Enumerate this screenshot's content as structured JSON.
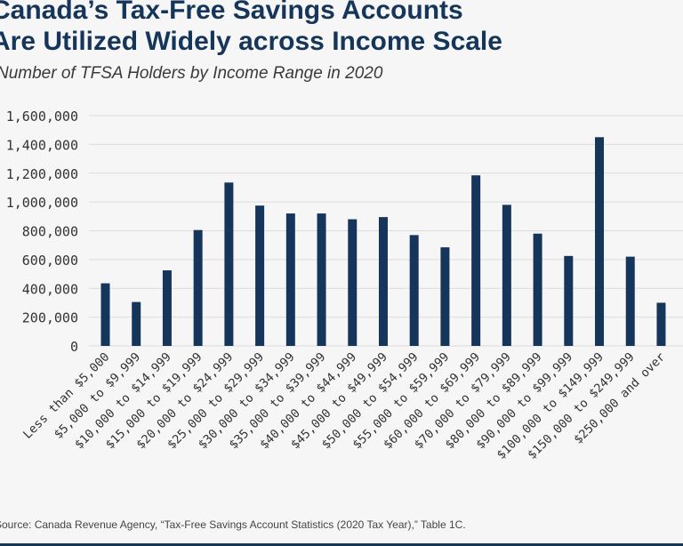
{
  "header": {
    "title_line1": "Canada’s Tax-Free Savings Accounts",
    "title_line2": "Are Utilized Widely across Income Scale",
    "subtitle": "Number of TFSA Holders by Income Range in 2020"
  },
  "footer": {
    "source": "Source: Canada Revenue Agency, “Tax-Free Savings Account Statistics (2020 Tax Year),” Table 1C."
  },
  "colors": {
    "bar": "#16355a",
    "title": "#16355a",
    "grid": "#dcdcdc",
    "background": "#f6f6f6"
  },
  "chart_data": {
    "type": "bar",
    "title": "Number of TFSA Holders by Income Range in 2020",
    "xlabel": "",
    "ylabel": "",
    "ylim": [
      0,
      1600000
    ],
    "yticks": [
      0,
      200000,
      400000,
      600000,
      800000,
      1000000,
      1200000,
      1400000,
      1600000
    ],
    "ytick_labels": [
      "0",
      "200,000",
      "400,000",
      "600,000",
      "800,000",
      "1,000,000",
      "1,200,000",
      "1,400,000",
      "1,600,000"
    ],
    "grid": true,
    "categories": [
      "Less than $5,000",
      "$5,000 to $9,999",
      "$10,000 to $14,999",
      "$15,000 to $19,999",
      "$20,000 to $24,999",
      "$25,000 to $29,999",
      "$30,000 to $34,999",
      "$35,000 to $39,999",
      "$40,000 to $44,999",
      "$45,000 to $49,999",
      "$50,000 to $54,999",
      "$55,000 to $59,999",
      "$60,000 to $69,999",
      "$70,000 to $79,999",
      "$80,000 to $89,999",
      "$90,000 to $99,999",
      "$100,000 to $149,999",
      "$150,000 to $249,999",
      "$250,000 and over"
    ],
    "values": [
      435000,
      305000,
      525000,
      805000,
      1135000,
      975000,
      920000,
      920000,
      880000,
      895000,
      770000,
      685000,
      1185000,
      980000,
      780000,
      625000,
      1450000,
      620000,
      300000
    ]
  }
}
